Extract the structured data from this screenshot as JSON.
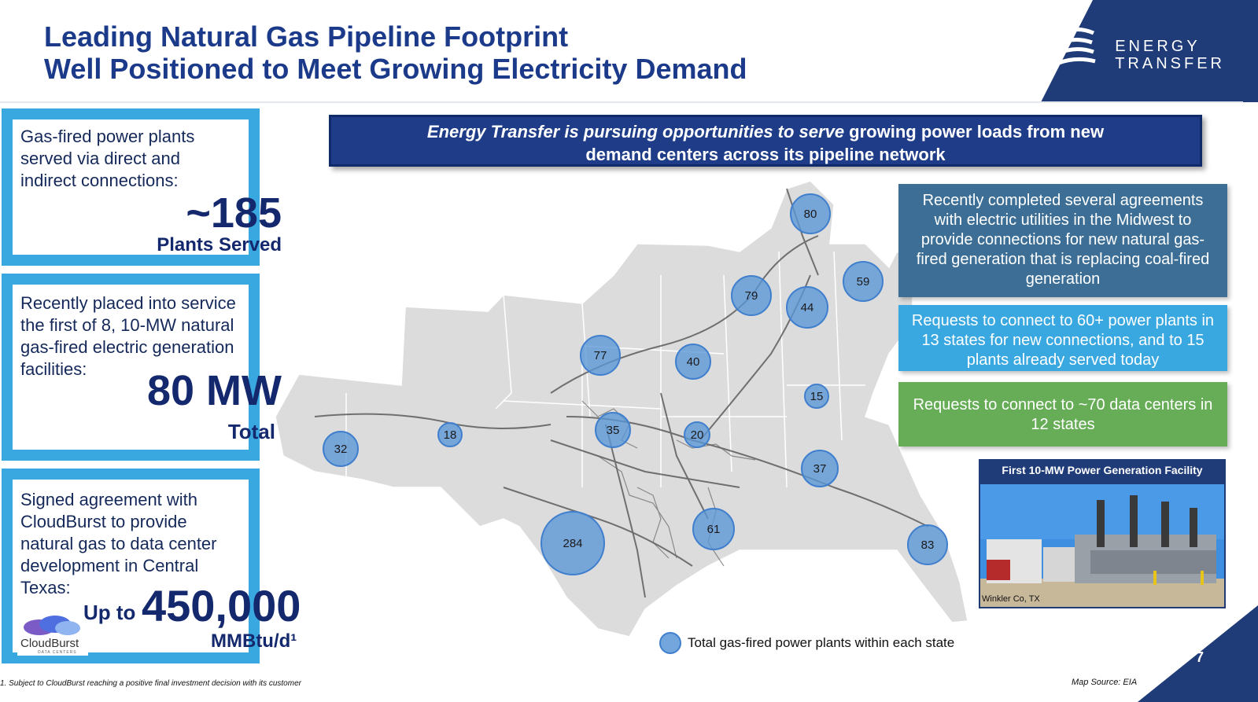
{
  "header": {
    "title_line1": "Leading Natural Gas Pipeline Footprint",
    "title_line2": "Well Positioned to Meet Growing Electricity Demand",
    "logo_line1": "ENERGY",
    "logo_line2": "TRANSFER"
  },
  "left_panels": [
    {
      "text_lines": [
        "Gas-fired power plants",
        "served via direct and",
        "indirect connections:"
      ],
      "value": "~185",
      "unit": "Plants Served"
    },
    {
      "text_lines": [
        "Recently placed into service",
        "the first of 8, 10-MW natural",
        "gas-fired electric generation",
        "facilities:"
      ],
      "value": "80 MW",
      "unit": "Total"
    },
    {
      "text_lines": [
        "Signed agreement with",
        "CloudBurst to provide",
        "natural gas to data center",
        "development in Central",
        "Texas:"
      ],
      "prefix": "Up to",
      "value": "450,000",
      "unit": "MMBtu/d¹",
      "logo_name": "CloudBurst",
      "logo_sub": "DATA CENTERS"
    }
  ],
  "banner": {
    "line1_italic": "Energy Transfer is pursuing opportunities to serve",
    "line1_rest": " growing power loads from new",
    "line2": "demand centers across its pipeline network"
  },
  "right_boxes": [
    {
      "text": "Recently completed several agreements with electric utilities in the Midwest to provide connections for new natural gas-fired generation that is replacing coal-fired generation",
      "color": "#3d6f96"
    },
    {
      "text": "Requests to connect to 60+ power plants in 13 states for new connections, and to 15 plants already served today",
      "color": "#3aa8e0"
    },
    {
      "text": "Requests to connect to ~70 data centers in 12 states",
      "color": "#67ad57"
    }
  ],
  "photo": {
    "title": "First 10-MW Power Generation Facility",
    "caption": "Winkler Co, TX"
  },
  "map_bubbles": [
    "80",
    "59",
    "79",
    "44",
    "77",
    "40",
    "15",
    "18",
    "35",
    "20",
    "32",
    "37",
    "61",
    "284",
    "83"
  ],
  "legend": {
    "text": "Total gas-fired power plants within each state"
  },
  "footnote": "1.     Subject to CloudBurst reaching a positive final investment decision with its customer",
  "map_source": "Map Source: EIA",
  "page_number": "7"
}
